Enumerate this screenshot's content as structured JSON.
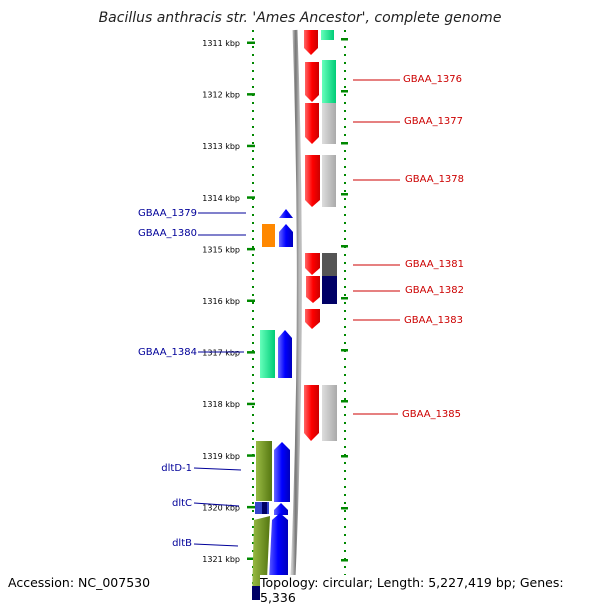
{
  "title": "Bacillus anthracis str. 'Ames Ancestor', complete genome",
  "footer": {
    "accession": "Accession: NC_007530",
    "topology": "Topology: circular; Length: 5,227,419 bp; Genes: 5,336"
  },
  "ruler": {
    "ticks": [
      "1311 kbp",
      "1312 kbp",
      "1313 kbp",
      "1314 kbp",
      "1315 kbp",
      "1316 kbp",
      "1317 kbp",
      "1318 kbp",
      "1319 kbp",
      "1320 kbp",
      "1321 kbp"
    ]
  },
  "colors": {
    "forward": "#ff0000",
    "reverse": "#0000ff",
    "right_label": "#cc0000",
    "left_label": "#000099",
    "scale": "#008800",
    "backbone": "#888888"
  },
  "genes_right": [
    {
      "label": "GBAA_1376"
    },
    {
      "label": "GBAA_1377"
    },
    {
      "label": "GBAA_1378"
    },
    {
      "label": "GBAA_1381"
    },
    {
      "label": "GBAA_1382"
    },
    {
      "label": "GBAA_1383"
    },
    {
      "label": "GBAA_1385"
    }
  ],
  "genes_left": [
    {
      "label": "GBAA_1379"
    },
    {
      "label": "GBAA_1380"
    },
    {
      "label": "GBAA_1384"
    },
    {
      "label": "dltD-1"
    },
    {
      "label": "dltC"
    },
    {
      "label": "dltB"
    }
  ]
}
